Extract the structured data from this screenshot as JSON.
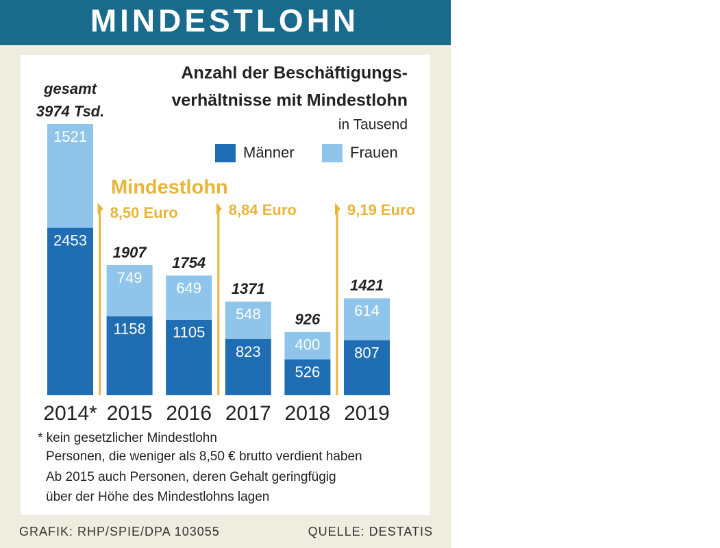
{
  "chart_data": {
    "type": "stacked-bar",
    "title": "MINDESTLOHN",
    "heading": [
      "Anzahl der Beschäftigungs-",
      "verhältnisse mit Mindestlohn"
    ],
    "subtitle": "in Tausend",
    "categories": [
      "2014*",
      "2015",
      "2016",
      "2017",
      "2018",
      "2019"
    ],
    "series": [
      {
        "name": "Männer",
        "color": "#1f6db3",
        "values": [
          2453,
          1158,
          1105,
          823,
          526,
          807
        ]
      },
      {
        "name": "Frauen",
        "color": "#8fc5ea",
        "values": [
          1521,
          749,
          649,
          548,
          400,
          614
        ]
      }
    ],
    "totals": {
      "prefix": "gesamt",
      "values": [
        3974,
        1907,
        1754,
        1371,
        926,
        1421
      ],
      "value_labels": [
        "3974 Tsd.",
        "1907",
        "1754",
        "1371",
        "926",
        "1421"
      ]
    },
    "minimum_wage": {
      "title": "Mindestlohn",
      "color": "#e8b43a",
      "labels": [
        "8,50 Euro",
        "8,84 Euro",
        "9,19 Euro"
      ]
    },
    "footnotes": [
      "* kein gesetzlicher Mindestlohn",
      "Personen, die weniger als 8,50 € brutto verdient haben",
      "Ab 2015 auch Personen, deren Gehalt geringfügig",
      "über der Höhe des Mindestlohns lagen"
    ],
    "credit": "GRAFIK: RHP/SPIE/DPA 103055",
    "source": "QUELLE: DESTATIS"
  }
}
